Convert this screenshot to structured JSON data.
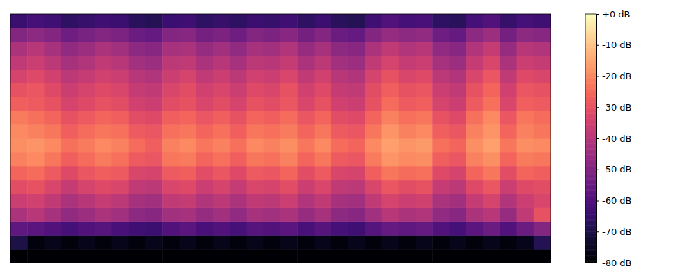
{
  "chart_data": {
    "type": "heatmap",
    "color": "magma",
    "tick_labels": false,
    "values": [
      [
        -80,
        -80,
        -80,
        -80,
        -80,
        -80,
        -80,
        -80,
        -80,
        -80,
        -80,
        -80,
        -80,
        -80,
        -80,
        -80,
        -80,
        -80,
        -80,
        -80,
        -80,
        -80,
        -80,
        -80,
        -80,
        -80,
        -80,
        -80,
        -80,
        -80,
        -80,
        -80
      ],
      [
        -70,
        -78,
        -76,
        -78,
        -76,
        -78,
        -76,
        -78,
        -76,
        -78,
        -76,
        -78,
        -76,
        -78,
        -76,
        -78,
        -76,
        -78,
        -76,
        -78,
        -76,
        -78,
        -76,
        -78,
        -76,
        -78,
        -76,
        -78,
        -76,
        -78,
        -76,
        -68
      ],
      [
        -57,
        -58,
        -60,
        -62,
        -60,
        -59,
        -61,
        -63,
        -64,
        -60,
        -58,
        -61,
        -60,
        -62,
        -59,
        -60,
        -58,
        -61,
        -59,
        -62,
        -63,
        -59,
        -56,
        -57,
        -56,
        -60,
        -62,
        -58,
        -55,
        -60,
        -55,
        -50
      ],
      [
        -42,
        -40,
        -43,
        -47,
        -45,
        -42,
        -44,
        -48,
        -49,
        -44,
        -43,
        -46,
        -44,
        -47,
        -43,
        -44,
        -42,
        -46,
        -43,
        -48,
        -49,
        -44,
        -40,
        -42,
        -41,
        -47,
        -49,
        -42,
        -40,
        -46,
        -38,
        -30
      ],
      [
        -36,
        -35,
        -38,
        -42,
        -40,
        -37,
        -39,
        -43,
        -44,
        -38,
        -37,
        -41,
        -39,
        -42,
        -38,
        -39,
        -36,
        -41,
        -38,
        -43,
        -44,
        -38,
        -34,
        -36,
        -35,
        -42,
        -44,
        -37,
        -34,
        -41,
        -36,
        -33
      ],
      [
        -31,
        -30,
        -33,
        -37,
        -34,
        -32,
        -33,
        -38,
        -39,
        -33,
        -32,
        -36,
        -34,
        -37,
        -33,
        -34,
        -31,
        -36,
        -33,
        -38,
        -39,
        -33,
        -29,
        -31,
        -30,
        -37,
        -39,
        -32,
        -29,
        -36,
        -32,
        -31
      ],
      [
        -26,
        -25,
        -28,
        -32,
        -29,
        -27,
        -28,
        -33,
        -34,
        -28,
        -27,
        -31,
        -29,
        -32,
        -28,
        -29,
        -26,
        -31,
        -28,
        -33,
        -34,
        -27,
        -23,
        -25,
        -24,
        -32,
        -34,
        -26,
        -23,
        -31,
        -26,
        -27
      ],
      [
        -21,
        -20,
        -23,
        -27,
        -25,
        -22,
        -24,
        -28,
        -29,
        -23,
        -22,
        -26,
        -24,
        -27,
        -23,
        -24,
        -21,
        -26,
        -23,
        -28,
        -29,
        -22,
        -18,
        -20,
        -19,
        -27,
        -29,
        -21,
        -19,
        -26,
        -22,
        -23
      ],
      [
        -19,
        -18,
        -20,
        -24,
        -22,
        -20,
        -21,
        -25,
        -27,
        -21,
        -20,
        -23,
        -21,
        -24,
        -20,
        -21,
        -19,
        -23,
        -20,
        -25,
        -26,
        -20,
        -16,
        -18,
        -17,
        -24,
        -26,
        -19,
        -16,
        -23,
        -19,
        -20
      ],
      [
        -20,
        -21,
        -23,
        -27,
        -25,
        -23,
        -24,
        -28,
        -29,
        -24,
        -23,
        -26,
        -24,
        -27,
        -23,
        -24,
        -22,
        -26,
        -23,
        -28,
        -29,
        -23,
        -18,
        -21,
        -20,
        -27,
        -29,
        -21,
        -18,
        -26,
        -21,
        -23
      ],
      [
        -22,
        -24,
        -26,
        -30,
        -28,
        -26,
        -27,
        -31,
        -32,
        -27,
        -26,
        -29,
        -27,
        -30,
        -26,
        -27,
        -25,
        -29,
        -26,
        -31,
        -32,
        -26,
        -21,
        -24,
        -23,
        -30,
        -32,
        -24,
        -20,
        -29,
        -23,
        -25
      ],
      [
        -27,
        -28,
        -30,
        -34,
        -32,
        -30,
        -31,
        -35,
        -36,
        -31,
        -30,
        -33,
        -31,
        -34,
        -30,
        -31,
        -29,
        -33,
        -30,
        -35,
        -36,
        -30,
        -25,
        -28,
        -27,
        -34,
        -36,
        -28,
        -24,
        -33,
        -27,
        -28
      ],
      [
        -30,
        -29,
        -32,
        -36,
        -34,
        -32,
        -33,
        -37,
        -38,
        -33,
        -31,
        -35,
        -33,
        -36,
        -32,
        -33,
        -30,
        -35,
        -32,
        -37,
        -38,
        -31,
        -27,
        -30,
        -29,
        -36,
        -38,
        -30,
        -26,
        -35,
        -29,
        -30
      ],
      [
        -34,
        -32,
        -35,
        -39,
        -37,
        -35,
        -36,
        -40,
        -41,
        -36,
        -34,
        -38,
        -36,
        -39,
        -35,
        -36,
        -33,
        -38,
        -35,
        -40,
        -41,
        -34,
        -30,
        -33,
        -32,
        -39,
        -41,
        -33,
        -29,
        -38,
        -32,
        -33
      ],
      [
        -38,
        -36,
        -39,
        -43,
        -41,
        -38,
        -40,
        -44,
        -45,
        -39,
        -38,
        -42,
        -40,
        -43,
        -39,
        -40,
        -37,
        -42,
        -39,
        -44,
        -45,
        -38,
        -34,
        -37,
        -36,
        -43,
        -45,
        -37,
        -33,
        -42,
        -36,
        -37
      ],
      [
        -42,
        -40,
        -43,
        -47,
        -45,
        -42,
        -44,
        -48,
        -49,
        -43,
        -42,
        -46,
        -44,
        -47,
        -43,
        -44,
        -41,
        -46,
        -43,
        -48,
        -49,
        -42,
        -38,
        -41,
        -40,
        -47,
        -49,
        -41,
        -37,
        -46,
        -40,
        -41
      ],
      [
        -50,
        -48,
        -50,
        -54,
        -52,
        -50,
        -51,
        -55,
        -56,
        -50,
        -49,
        -53,
        -51,
        -54,
        -50,
        -51,
        -49,
        -53,
        -50,
        -55,
        -56,
        -50,
        -46,
        -48,
        -47,
        -54,
        -56,
        -48,
        -45,
        -53,
        -48,
        -49
      ],
      [
        -64,
        -62,
        -63,
        -66,
        -65,
        -63,
        -64,
        -67,
        -68,
        -64,
        -63,
        -66,
        -65,
        -66,
        -64,
        -65,
        -63,
        -66,
        -64,
        -67,
        -68,
        -63,
        -60,
        -62,
        -61,
        -66,
        -67,
        -62,
        -60,
        -65,
        -62,
        -63
      ]
    ],
    "colorbar": {
      "range": [
        -80,
        0
      ],
      "ticks": [
        {
          "value": 0,
          "label": "+0 dB"
        },
        {
          "value": -10,
          "label": "-10 dB"
        },
        {
          "value": -20,
          "label": "-20 dB"
        },
        {
          "value": -30,
          "label": "-30 dB"
        },
        {
          "value": -40,
          "label": "-40 dB"
        },
        {
          "value": -50,
          "label": "-50 dB"
        },
        {
          "value": -60,
          "label": "-60 dB"
        },
        {
          "value": -70,
          "label": "-70 dB"
        },
        {
          "value": -80,
          "label": "-80 dB"
        }
      ]
    }
  }
}
